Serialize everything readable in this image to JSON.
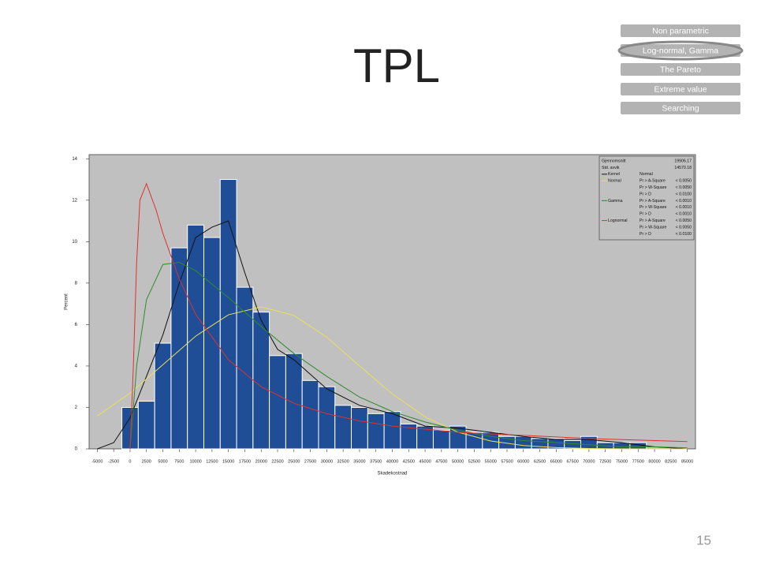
{
  "slide": {
    "title": "TPL",
    "nav": [
      "Non parametric",
      "Log-normal, Gamma",
      "The Pareto",
      "Extreme value",
      "Searching"
    ],
    "page_number": 15
  },
  "chart_data": {
    "type": "histogram",
    "xlabel": "Skadekostnad",
    "ylabel": "Percent",
    "bins": [
      -1250,
      1250,
      3750,
      6250,
      8750,
      11250,
      13750,
      16250,
      18750,
      21250,
      23750,
      26250,
      28750,
      31250,
      33750,
      36250,
      38750,
      41250,
      43750,
      46250,
      48750,
      51250,
      53750,
      56250,
      58750,
      61250,
      63750,
      66250,
      68750,
      71250,
      73750,
      76250,
      78750
    ],
    "values": [
      2.0,
      2.3,
      5.1,
      9.7,
      10.8,
      10.2,
      13.0,
      7.8,
      6.6,
      4.5,
      4.6,
      3.3,
      3.0,
      2.1,
      2.0,
      1.7,
      1.8,
      1.2,
      1.1,
      0.9,
      1.1,
      0.8,
      0.8,
      0.6,
      0.6,
      0.5,
      0.5,
      0.4,
      0.6,
      0.3,
      0.3,
      0.3
    ],
    "color": "#1f4e96",
    "xlim": [
      -6250,
      86250
    ],
    "xticks": [
      -5000,
      -2500,
      0,
      2500,
      5000,
      7500,
      10000,
      12500,
      15000,
      17500,
      20000,
      22500,
      25000,
      27500,
      30000,
      32500,
      35000,
      37500,
      40000,
      42500,
      45000,
      47500,
      50000,
      52500,
      55000,
      57500,
      60000,
      62500,
      65000,
      67500,
      70000,
      72500,
      75000,
      77500,
      80000,
      82500,
      85000
    ],
    "ylim": [
      0,
      14.2
    ],
    "yticks": [
      0,
      2,
      4,
      6,
      8,
      10,
      12,
      14
    ],
    "stats": [
      {
        "label": "Gjennomsnitt",
        "value": 19906.17
      },
      {
        "label": "Std. avvik",
        "value": 14570.18
      }
    ],
    "test_header": "Normal",
    "curves": [
      {
        "name": "Kernel",
        "color": "#111111",
        "x": [
          -5000,
          -2500,
          0,
          2500,
          5000,
          7500,
          10000,
          12500,
          15000,
          17500,
          20000,
          22500,
          25000,
          27500,
          30000,
          35000,
          40000,
          45000,
          50000,
          55000,
          60000,
          65000,
          70000,
          75000,
          80000,
          85000
        ],
        "values": [
          0,
          0.3,
          1.5,
          3.5,
          5.5,
          8,
          10.2,
          10.7,
          11,
          8.5,
          6.2,
          4.8,
          4.3,
          3.6,
          2.9,
          2.1,
          1.7,
          1.1,
          1.0,
          0.8,
          0.6,
          0.45,
          0.45,
          0.3,
          0.1,
          0
        ],
        "tests": []
      },
      {
        "name": "Normal",
        "color": "#e8e05a",
        "x": [
          -5000,
          0,
          5000,
          10000,
          15000,
          20000,
          25000,
          30000,
          35000,
          40000,
          45000,
          50000,
          55000,
          60000,
          65000,
          70000,
          75000,
          80000,
          85000
        ],
        "values": [
          1.59,
          2.69,
          4.06,
          5.44,
          6.47,
          6.85,
          6.44,
          5.39,
          4.0,
          2.65,
          1.55,
          0.81,
          0.38,
          0.16,
          0.06,
          0.02,
          0.005,
          0,
          0
        ],
        "tests": [
          [
            "Pr > A-Square",
            "< 0.0050"
          ],
          [
            "Pr > W-Square",
            "< 0.0050"
          ],
          [
            "Pr > D",
            "< 0.0100"
          ]
        ]
      },
      {
        "name": "Gamma",
        "color": "#2e8b2e",
        "x": [
          0,
          1000,
          2500,
          5000,
          7500,
          10000,
          15000,
          20000,
          25000,
          30000,
          35000,
          40000,
          45000,
          50000,
          55000,
          60000,
          65000,
          70000,
          75000,
          80000,
          85000
        ],
        "values": [
          0,
          4,
          7.2,
          8.9,
          9.0,
          8.6,
          7.3,
          5.9,
          4.6,
          3.5,
          2.5,
          1.8,
          1.3,
          0.9,
          0.6,
          0.4,
          0.3,
          0.2,
          0.1,
          0.1,
          0.05
        ],
        "tests": [
          [
            "Pr > A-Square",
            "< 0.0010"
          ],
          [
            "Pr > W-Square",
            "< 0.0010"
          ],
          [
            "Pr > D",
            "< 0.0010"
          ]
        ]
      },
      {
        "name": "Lognormal",
        "color": "#e03030",
        "x": [
          0,
          500,
          1000,
          1500,
          2500,
          4000,
          5000,
          7500,
          10000,
          15000,
          20000,
          25000,
          30000,
          35000,
          40000,
          45000,
          50000,
          60000,
          70000,
          85000
        ],
        "values": [
          0,
          4,
          9,
          12,
          12.8,
          11.5,
          10.4,
          8.2,
          6.5,
          4.3,
          3.0,
          2.2,
          1.7,
          1.35,
          1.1,
          0.95,
          0.8,
          0.65,
          0.5,
          0.35
        ],
        "tests": [
          [
            "Pr > A-Square",
            "< 0.0050"
          ],
          [
            "Pr > W-Square",
            "< 0.0050"
          ],
          [
            "Pr > D",
            "< 0.0100"
          ]
        ]
      }
    ]
  }
}
